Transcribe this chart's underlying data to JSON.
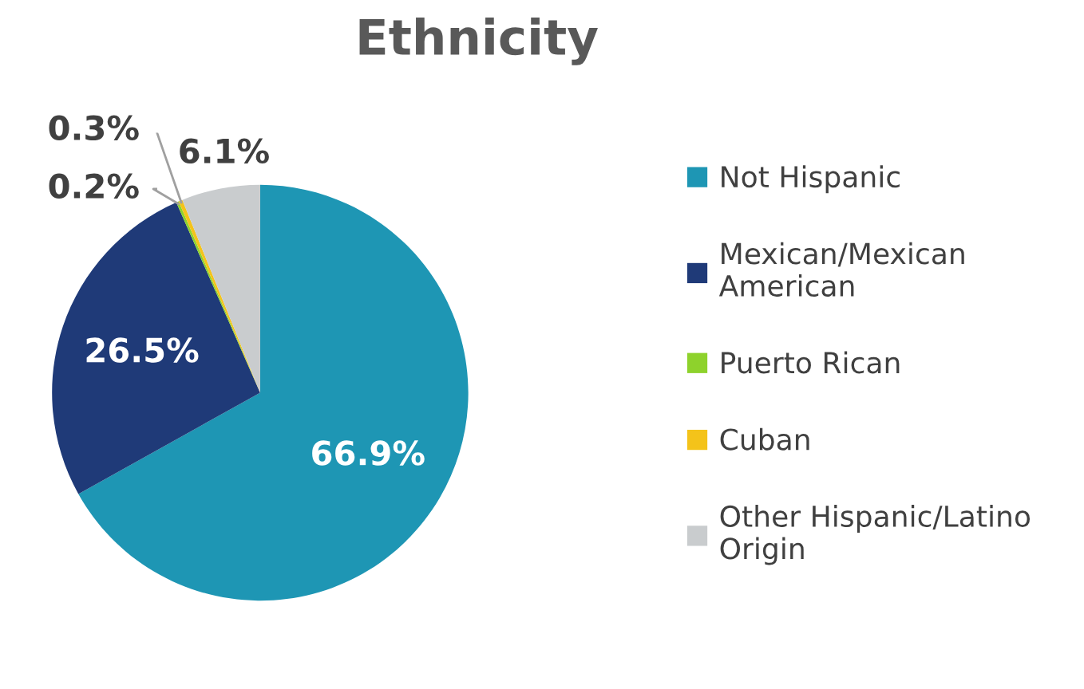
{
  "chart_data": {
    "type": "pie",
    "title": "Ethnicity",
    "categories": [
      "Not Hispanic",
      "Mexican/Mexican American",
      "Puerto Rican",
      "Cuban",
      "Other Hispanic/Latino Origin"
    ],
    "values": [
      66.9,
      26.5,
      0.2,
      0.3,
      6.1
    ],
    "colors": [
      "#1e96b4",
      "#1f3a78",
      "#8ed22c",
      "#f4c31a",
      "#c9ccce"
    ],
    "value_labels": [
      "66.9%",
      "26.5%",
      "0.2%",
      "0.3%",
      "6.1%"
    ],
    "legend": "right"
  }
}
